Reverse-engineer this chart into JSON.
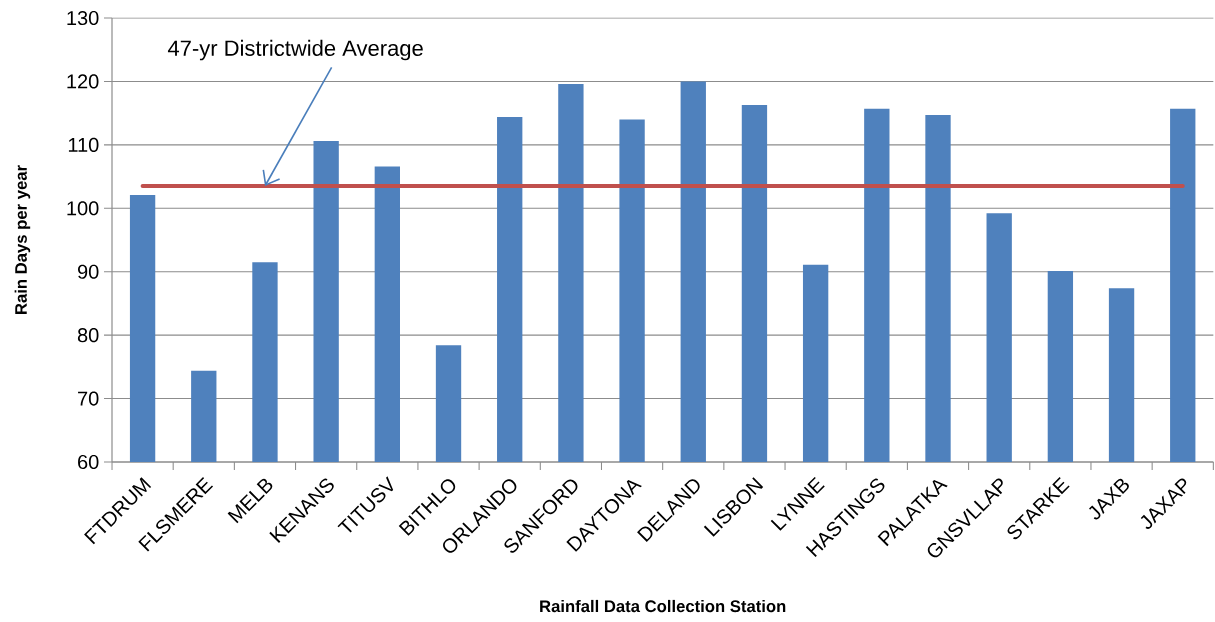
{
  "chart_data": {
    "type": "bar",
    "xlabel": "Rainfall Data Collection Station",
    "ylabel": "Rain Days per year",
    "categories": [
      "FTDRUM",
      "FLSMERE",
      "MELB",
      "KENANS",
      "TITUSV",
      "BITHLO",
      "ORLANDO",
      "SANFORD",
      "DAYTONA",
      "DELAND",
      "LISBON",
      "LYNNE",
      "HASTINGS",
      "PALATKA",
      "GNSVLLAP",
      "STARKE",
      "JAXB",
      "JAXAP"
    ],
    "values": [
      102.1,
      74.4,
      91.5,
      110.6,
      106.6,
      78.4,
      114.4,
      119.6,
      114.0,
      120.0,
      116.3,
      91.1,
      115.7,
      114.7,
      99.2,
      90.1,
      87.4,
      115.7
    ],
    "color": "#4f81bd",
    "ylim": [
      60,
      130
    ],
    "yticks": [
      60,
      70,
      80,
      90,
      100,
      110,
      120,
      130
    ],
    "grid": "y",
    "ref_lines": [
      {
        "axis": "y",
        "value": 103.5,
        "color": "#c0504d"
      }
    ],
    "annotations": [
      {
        "text": "47-yr Districtwide Average",
        "x": "MELB",
        "y": 103.5
      }
    ]
  }
}
